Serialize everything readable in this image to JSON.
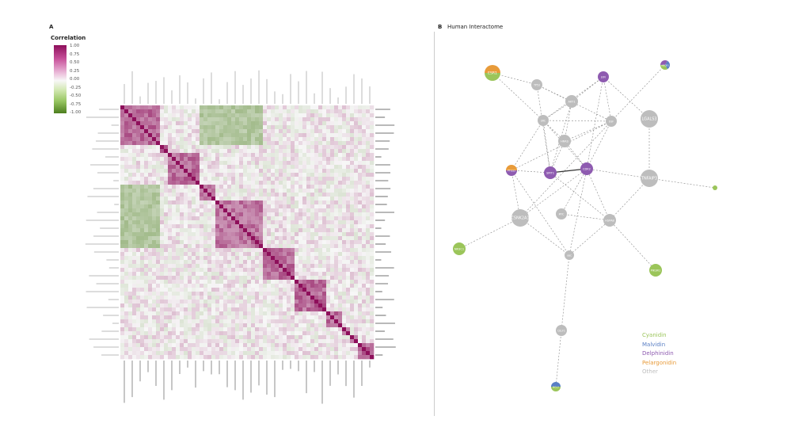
{
  "panel_a": {
    "label": "A",
    "colorbar": {
      "title": "Correlation",
      "ticks": [
        "1.00",
        "0.75",
        "0.50",
        "0.25",
        "0.00",
        "-0.25",
        "-0.50",
        "-0.75",
        "-1.00"
      ],
      "colors": {
        "high": "#8e0f5b",
        "mid": "#f7f7f7",
        "low": "#4d7f1f"
      }
    }
  },
  "panel_b": {
    "label": "B",
    "title": "Human Interactome",
    "legend": [
      {
        "label": "Cyanidin",
        "color": "#9bc55a"
      },
      {
        "label": "Malvidin",
        "color": "#5a7fc4"
      },
      {
        "label": "Delphinidin",
        "color": "#8e5bb0"
      },
      {
        "label": "Pelargonidin",
        "color": "#e89b3a"
      },
      {
        "label": "Other",
        "color": "#bdbdbd"
      }
    ],
    "nodes": [
      {
        "label": "ESR1",
        "cats": [
          "Pelargonidin",
          "Cyanidin"
        ]
      },
      {
        "label": "TP53",
        "cats": [
          "Other"
        ]
      },
      {
        "label": "JUN",
        "cats": [
          "Delphinidin"
        ]
      },
      {
        "label": "ABCB1",
        "cats": [
          "Delphinidin",
          "Malvidin",
          "Cyanidin"
        ]
      },
      {
        "label": "AKT1",
        "cats": [
          "Other"
        ]
      },
      {
        "label": "SRC",
        "cats": [
          "Other"
        ]
      },
      {
        "label": "EGF",
        "cats": [
          "Other"
        ]
      },
      {
        "label": "LGALS3",
        "cats": [
          "Other"
        ]
      },
      {
        "label": "HRAS",
        "cats": [
          "Other"
        ]
      },
      {
        "label": "PTGS2",
        "cats": [
          "Pelargonidin",
          "Delphinidin"
        ]
      },
      {
        "label": "SIRT1",
        "cats": [
          "Delphinidin"
        ]
      },
      {
        "label": "CDK2",
        "cats": [
          "Delphinidin"
        ]
      },
      {
        "label": "TNFAIP3",
        "cats": [
          "Other"
        ]
      },
      {
        "label": "",
        "cats": [
          "Cyanidin"
        ]
      },
      {
        "label": "CSNK2A1",
        "cats": [
          "Other"
        ]
      },
      {
        "label": "MYC",
        "cats": [
          "Other"
        ]
      },
      {
        "label": "HSPA8",
        "cats": [
          "Other"
        ]
      },
      {
        "label": "NR3C1",
        "cats": [
          "Cyanidin"
        ]
      },
      {
        "label": "UBC",
        "cats": [
          "Other"
        ]
      },
      {
        "label": "PIK3R1",
        "cats": [
          "Cyanidin"
        ]
      },
      {
        "label": "CELF1",
        "cats": [
          "Other"
        ]
      },
      {
        "label": "BCL2",
        "cats": [
          "Malvidin",
          "Cyanidin"
        ]
      }
    ],
    "edges": [
      [
        0,
        1
      ],
      [
        0,
        5
      ],
      [
        1,
        4
      ],
      [
        1,
        6
      ],
      [
        1,
        10
      ],
      [
        2,
        4
      ],
      [
        2,
        5
      ],
      [
        2,
        6
      ],
      [
        2,
        11
      ],
      [
        3,
        6
      ],
      [
        4,
        5
      ],
      [
        4,
        8
      ],
      [
        4,
        10
      ],
      [
        5,
        6
      ],
      [
        5,
        9
      ],
      [
        5,
        8
      ],
      [
        5,
        10
      ],
      [
        5,
        11
      ],
      [
        6,
        8
      ],
      [
        6,
        9
      ],
      [
        6,
        11
      ],
      [
        6,
        14
      ],
      [
        7,
        2
      ],
      [
        7,
        12
      ],
      [
        8,
        11
      ],
      [
        8,
        10
      ],
      [
        9,
        14
      ],
      [
        9,
        18
      ],
      [
        10,
        11
      ],
      [
        11,
        12
      ],
      [
        11,
        15
      ],
      [
        11,
        16
      ],
      [
        11,
        14
      ],
      [
        11,
        18
      ],
      [
        12,
        13
      ],
      [
        12,
        16
      ],
      [
        14,
        17
      ],
      [
        14,
        18
      ],
      [
        15,
        16
      ],
      [
        16,
        18
      ],
      [
        16,
        19
      ],
      [
        18,
        20
      ],
      [
        20,
        21
      ],
      [
        10,
        16
      ],
      [
        9,
        10
      ]
    ]
  }
}
